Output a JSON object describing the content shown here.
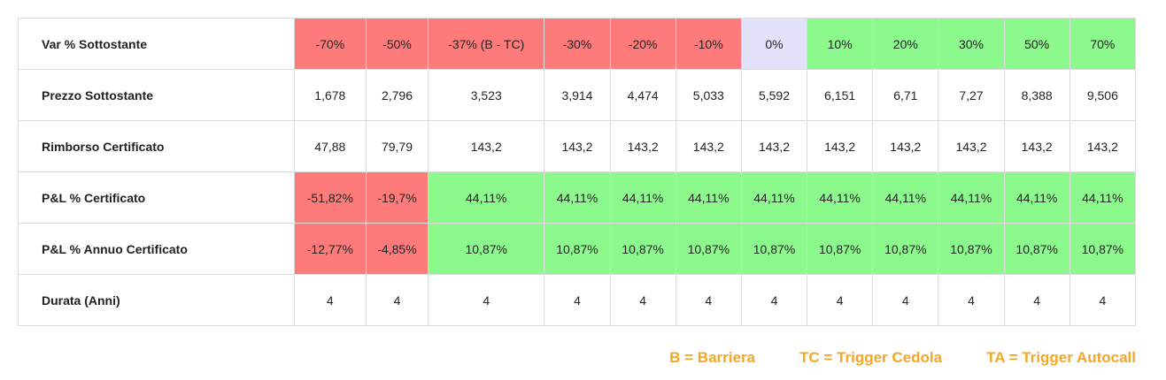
{
  "table": {
    "rows": [
      {
        "label": "Var % Sottostante",
        "cells": [
          {
            "v": "-70%",
            "c": "red"
          },
          {
            "v": "-50%",
            "c": "red"
          },
          {
            "v": "-37% (B - TC)",
            "c": "red"
          },
          {
            "v": "-30%",
            "c": "red"
          },
          {
            "v": "-20%",
            "c": "red"
          },
          {
            "v": "-10%",
            "c": "red"
          },
          {
            "v": "0%",
            "c": "lavender"
          },
          {
            "v": "10%",
            "c": "green"
          },
          {
            "v": "20%",
            "c": "green"
          },
          {
            "v": "30%",
            "c": "green"
          },
          {
            "v": "50%",
            "c": "green"
          },
          {
            "v": "70%",
            "c": "green"
          }
        ]
      },
      {
        "label": "Prezzo Sottostante",
        "cells": [
          {
            "v": "1,678",
            "c": "white"
          },
          {
            "v": "2,796",
            "c": "white"
          },
          {
            "v": "3,523",
            "c": "white"
          },
          {
            "v": "3,914",
            "c": "white"
          },
          {
            "v": "4,474",
            "c": "white"
          },
          {
            "v": "5,033",
            "c": "white"
          },
          {
            "v": "5,592",
            "c": "white"
          },
          {
            "v": "6,151",
            "c": "white"
          },
          {
            "v": "6,71",
            "c": "white"
          },
          {
            "v": "7,27",
            "c": "white"
          },
          {
            "v": "8,388",
            "c": "white"
          },
          {
            "v": "9,506",
            "c": "white"
          }
        ]
      },
      {
        "label": "Rimborso Certificato",
        "cells": [
          {
            "v": "47,88",
            "c": "white"
          },
          {
            "v": "79,79",
            "c": "white"
          },
          {
            "v": "143,2",
            "c": "white"
          },
          {
            "v": "143,2",
            "c": "white"
          },
          {
            "v": "143,2",
            "c": "white"
          },
          {
            "v": "143,2",
            "c": "white"
          },
          {
            "v": "143,2",
            "c": "white"
          },
          {
            "v": "143,2",
            "c": "white"
          },
          {
            "v": "143,2",
            "c": "white"
          },
          {
            "v": "143,2",
            "c": "white"
          },
          {
            "v": "143,2",
            "c": "white"
          },
          {
            "v": "143,2",
            "c": "white"
          }
        ]
      },
      {
        "label": "P&L % Certificato",
        "cells": [
          {
            "v": "-51,82%",
            "c": "red"
          },
          {
            "v": "-19,7%",
            "c": "red"
          },
          {
            "v": "44,11%",
            "c": "green"
          },
          {
            "v": "44,11%",
            "c": "green"
          },
          {
            "v": "44,11%",
            "c": "green"
          },
          {
            "v": "44,11%",
            "c": "green"
          },
          {
            "v": "44,11%",
            "c": "green"
          },
          {
            "v": "44,11%",
            "c": "green"
          },
          {
            "v": "44,11%",
            "c": "green"
          },
          {
            "v": "44,11%",
            "c": "green"
          },
          {
            "v": "44,11%",
            "c": "green"
          },
          {
            "v": "44,11%",
            "c": "green"
          }
        ]
      },
      {
        "label": "P&L % Annuo Certificato",
        "cells": [
          {
            "v": "-12,77%",
            "c": "red"
          },
          {
            "v": "-4,85%",
            "c": "red"
          },
          {
            "v": "10,87%",
            "c": "green"
          },
          {
            "v": "10,87%",
            "c": "green"
          },
          {
            "v": "10,87%",
            "c": "green"
          },
          {
            "v": "10,87%",
            "c": "green"
          },
          {
            "v": "10,87%",
            "c": "green"
          },
          {
            "v": "10,87%",
            "c": "green"
          },
          {
            "v": "10,87%",
            "c": "green"
          },
          {
            "v": "10,87%",
            "c": "green"
          },
          {
            "v": "10,87%",
            "c": "green"
          },
          {
            "v": "10,87%",
            "c": "green"
          }
        ]
      },
      {
        "label": "Durata (Anni)",
        "cells": [
          {
            "v": "4",
            "c": "white"
          },
          {
            "v": "4",
            "c": "white"
          },
          {
            "v": "4",
            "c": "white"
          },
          {
            "v": "4",
            "c": "white"
          },
          {
            "v": "4",
            "c": "white"
          },
          {
            "v": "4",
            "c": "white"
          },
          {
            "v": "4",
            "c": "white"
          },
          {
            "v": "4",
            "c": "white"
          },
          {
            "v": "4",
            "c": "white"
          },
          {
            "v": "4",
            "c": "white"
          },
          {
            "v": "4",
            "c": "white"
          },
          {
            "v": "4",
            "c": "white"
          }
        ]
      }
    ]
  },
  "legend": {
    "barriera": "B = Barriera",
    "trigger_cedola": "TC = Trigger Cedola",
    "trigger_autocall": "TA = Trigger Autocall"
  },
  "colors": {
    "red": "#ff7b7b",
    "green": "#8bf98b",
    "lavender": "#e2e2fb",
    "white": "#ffffff",
    "legend_text": "#f5a623"
  }
}
